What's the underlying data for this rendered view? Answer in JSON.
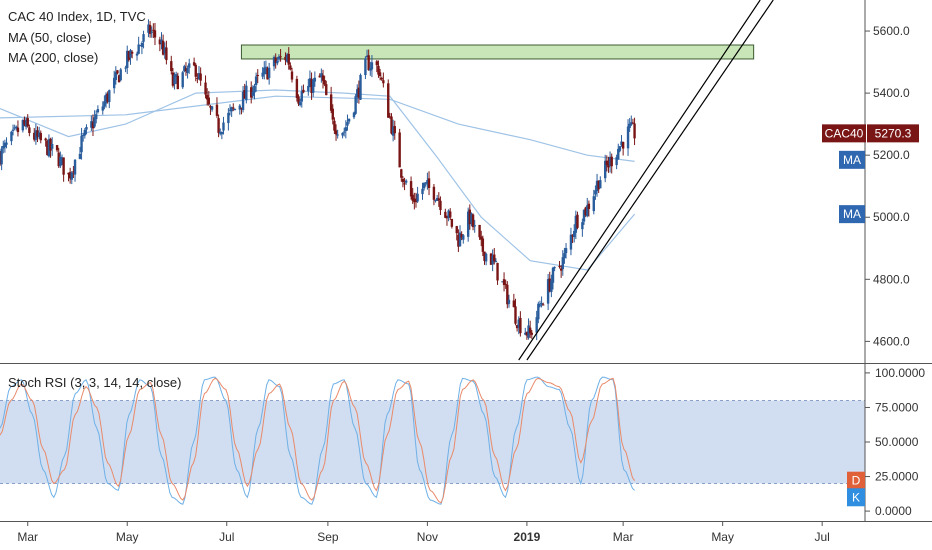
{
  "header": {
    "symbol_line": "CAC 40 Index, 1D, TVC",
    "ma50_label": "MA (50, close)",
    "ma200_label": "MA (200, close)"
  },
  "oscillator": {
    "label": "Stoch RSI (3, 3, 14, 14, close)",
    "d_badge": "D",
    "k_badge": "K"
  },
  "price_badges": {
    "symbol": "CAC40",
    "last_price": "5270.3",
    "ma1": "MA",
    "ma2": "MA"
  },
  "colors": {
    "up": "#2a5d9c",
    "down": "#7a1515",
    "ma": "#9fc3e6",
    "stoch_k": "#6fb0e6",
    "stoch_d": "#e98a6a",
    "band_fill": "#c9d8ee",
    "zone_fill": "#c8e6b8",
    "zone_stroke": "#3c5b30",
    "price_badge": "#7a1515",
    "ma_badge": "#2f67b0",
    "d_badge": "#e0603a",
    "k_badge": "#2f8ee0"
  },
  "chart_data": [
    {
      "type": "candlestick",
      "title": "CAC 40 Index, 1D, TVC",
      "timeframe": "1D",
      "x_ticks": [
        "Mar",
        "May",
        "Jul",
        "Sep",
        "Nov",
        "2019",
        "Mar",
        "May",
        "Jul"
      ],
      "y_ticks": [
        "4600.0",
        "4800.0",
        "5000.0",
        "5200.0",
        "5400.0",
        "5600.0"
      ],
      "ylim": [
        4540,
        5700
      ],
      "series_close": [
        {
          "date": "2018-02-12",
          "close": 5200
        },
        {
          "date": "2018-02-26",
          "close": 5300
        },
        {
          "date": "2018-03-05",
          "close": 5260
        },
        {
          "date": "2018-03-19",
          "close": 5200
        },
        {
          "date": "2018-03-26",
          "close": 5130
        },
        {
          "date": "2018-04-03",
          "close": 5240
        },
        {
          "date": "2018-04-16",
          "close": 5360
        },
        {
          "date": "2018-04-30",
          "close": 5500
        },
        {
          "date": "2018-05-15",
          "close": 5600
        },
        {
          "date": "2018-05-22",
          "close": 5560
        },
        {
          "date": "2018-05-29",
          "close": 5430
        },
        {
          "date": "2018-06-05",
          "close": 5460
        },
        {
          "date": "2018-06-12",
          "close": 5480
        },
        {
          "date": "2018-06-19",
          "close": 5360
        },
        {
          "date": "2018-06-26",
          "close": 5290
        },
        {
          "date": "2018-07-03",
          "close": 5330
        },
        {
          "date": "2018-07-17",
          "close": 5420
        },
        {
          "date": "2018-07-31",
          "close": 5500
        },
        {
          "date": "2018-08-07",
          "close": 5520
        },
        {
          "date": "2018-08-14",
          "close": 5390
        },
        {
          "date": "2018-08-28",
          "close": 5450
        },
        {
          "date": "2018-09-04",
          "close": 5300
        },
        {
          "date": "2018-09-11",
          "close": 5280
        },
        {
          "date": "2018-09-18",
          "close": 5380
        },
        {
          "date": "2018-09-25",
          "close": 5500
        },
        {
          "date": "2018-10-02",
          "close": 5480
        },
        {
          "date": "2018-10-09",
          "close": 5320
        },
        {
          "date": "2018-10-16",
          "close": 5150
        },
        {
          "date": "2018-10-23",
          "close": 5050
        },
        {
          "date": "2018-10-30",
          "close": 5100
        },
        {
          "date": "2018-11-06",
          "close": 5080
        },
        {
          "date": "2018-11-13",
          "close": 5010
        },
        {
          "date": "2018-11-20",
          "close": 4930
        },
        {
          "date": "2018-11-27",
          "close": 5000
        },
        {
          "date": "2018-12-04",
          "close": 4900
        },
        {
          "date": "2018-12-11",
          "close": 4860
        },
        {
          "date": "2018-12-18",
          "close": 4770
        },
        {
          "date": "2018-12-27",
          "close": 4660
        },
        {
          "date": "2019-01-03",
          "close": 4620
        },
        {
          "date": "2019-01-10",
          "close": 4730
        },
        {
          "date": "2019-01-17",
          "close": 4810
        },
        {
          "date": "2019-01-24",
          "close": 4870
        },
        {
          "date": "2019-01-31",
          "close": 4990
        },
        {
          "date": "2019-02-07",
          "close": 5030
        },
        {
          "date": "2019-02-14",
          "close": 5120
        },
        {
          "date": "2019-02-21",
          "close": 5180
        },
        {
          "date": "2019-02-28",
          "close": 5240
        },
        {
          "date": "2019-03-05",
          "close": 5280
        },
        {
          "date": "2019-03-08",
          "close": 5270.3
        }
      ],
      "ma50": [
        {
          "date": "2018-02-12",
          "value": 5350
        },
        {
          "date": "2018-03-26",
          "value": 5260
        },
        {
          "date": "2018-04-30",
          "value": 5300
        },
        {
          "date": "2018-06-12",
          "value": 5400
        },
        {
          "date": "2018-07-31",
          "value": 5410
        },
        {
          "date": "2018-09-11",
          "value": 5400
        },
        {
          "date": "2018-10-09",
          "value": 5390
        },
        {
          "date": "2018-11-06",
          "value": 5200
        },
        {
          "date": "2018-12-04",
          "value": 5000
        },
        {
          "date": "2019-01-03",
          "value": 4860
        },
        {
          "date": "2019-02-07",
          "value": 4830
        },
        {
          "date": "2019-03-08",
          "value": 5010
        }
      ],
      "ma200": [
        {
          "date": "2018-02-12",
          "value": 5320
        },
        {
          "date": "2018-04-30",
          "value": 5330
        },
        {
          "date": "2018-07-31",
          "value": 5390
        },
        {
          "date": "2018-10-09",
          "value": 5380
        },
        {
          "date": "2018-11-20",
          "value": 5300
        },
        {
          "date": "2019-01-03",
          "value": 5250
        },
        {
          "date": "2019-02-07",
          "value": 5200
        },
        {
          "date": "2019-03-08",
          "value": 5180
        }
      ],
      "resistance_zone": {
        "from": "2018-07-10",
        "to": "2019-05-20",
        "low": 5510,
        "high": 5555
      },
      "channel": {
        "upper": [
          {
            "date": "2018-12-27",
            "value": 4540
          },
          {
            "date": "2019-05-24",
            "value": 5700
          }
        ],
        "lower": [
          {
            "date": "2019-01-01",
            "value": 4540
          },
          {
            "date": "2019-06-01",
            "value": 5700
          }
        ]
      }
    },
    {
      "type": "line",
      "title": "Stoch RSI (3, 3, 14, 14, close)",
      "y_ticks": [
        "0.0000",
        "25.0000",
        "50.0000",
        "75.0000",
        "100.0000"
      ],
      "ylim": [
        -5,
        105
      ],
      "band": [
        20,
        80
      ],
      "series": [
        {
          "name": "K",
          "values": [
            60,
            90,
            95,
            70,
            30,
            10,
            40,
            85,
            95,
            60,
            20,
            15,
            70,
            95,
            90,
            40,
            10,
            5,
            50,
            95,
            97,
            80,
            30,
            10,
            60,
            95,
            90,
            40,
            10,
            5,
            45,
            92,
            95,
            60,
            20,
            10,
            70,
            95,
            92,
            30,
            8,
            5,
            55,
            96,
            94,
            70,
            25,
            10,
            60,
            95,
            97,
            90,
            88,
            60,
            20,
            80,
            97,
            95,
            30,
            15
          ]
        },
        {
          "name": "D",
          "values": [
            55,
            80,
            92,
            80,
            45,
            20,
            30,
            70,
            90,
            75,
            35,
            18,
            55,
            88,
            93,
            55,
            20,
            8,
            35,
            85,
            96,
            88,
            45,
            18,
            45,
            85,
            92,
            60,
            20,
            8,
            30,
            80,
            94,
            75,
            35,
            15,
            55,
            88,
            94,
            50,
            15,
            6,
            40,
            88,
            95,
            80,
            40,
            15,
            45,
            85,
            96,
            93,
            90,
            72,
            35,
            65,
            92,
            96,
            45,
            22
          ]
        }
      ]
    }
  ]
}
